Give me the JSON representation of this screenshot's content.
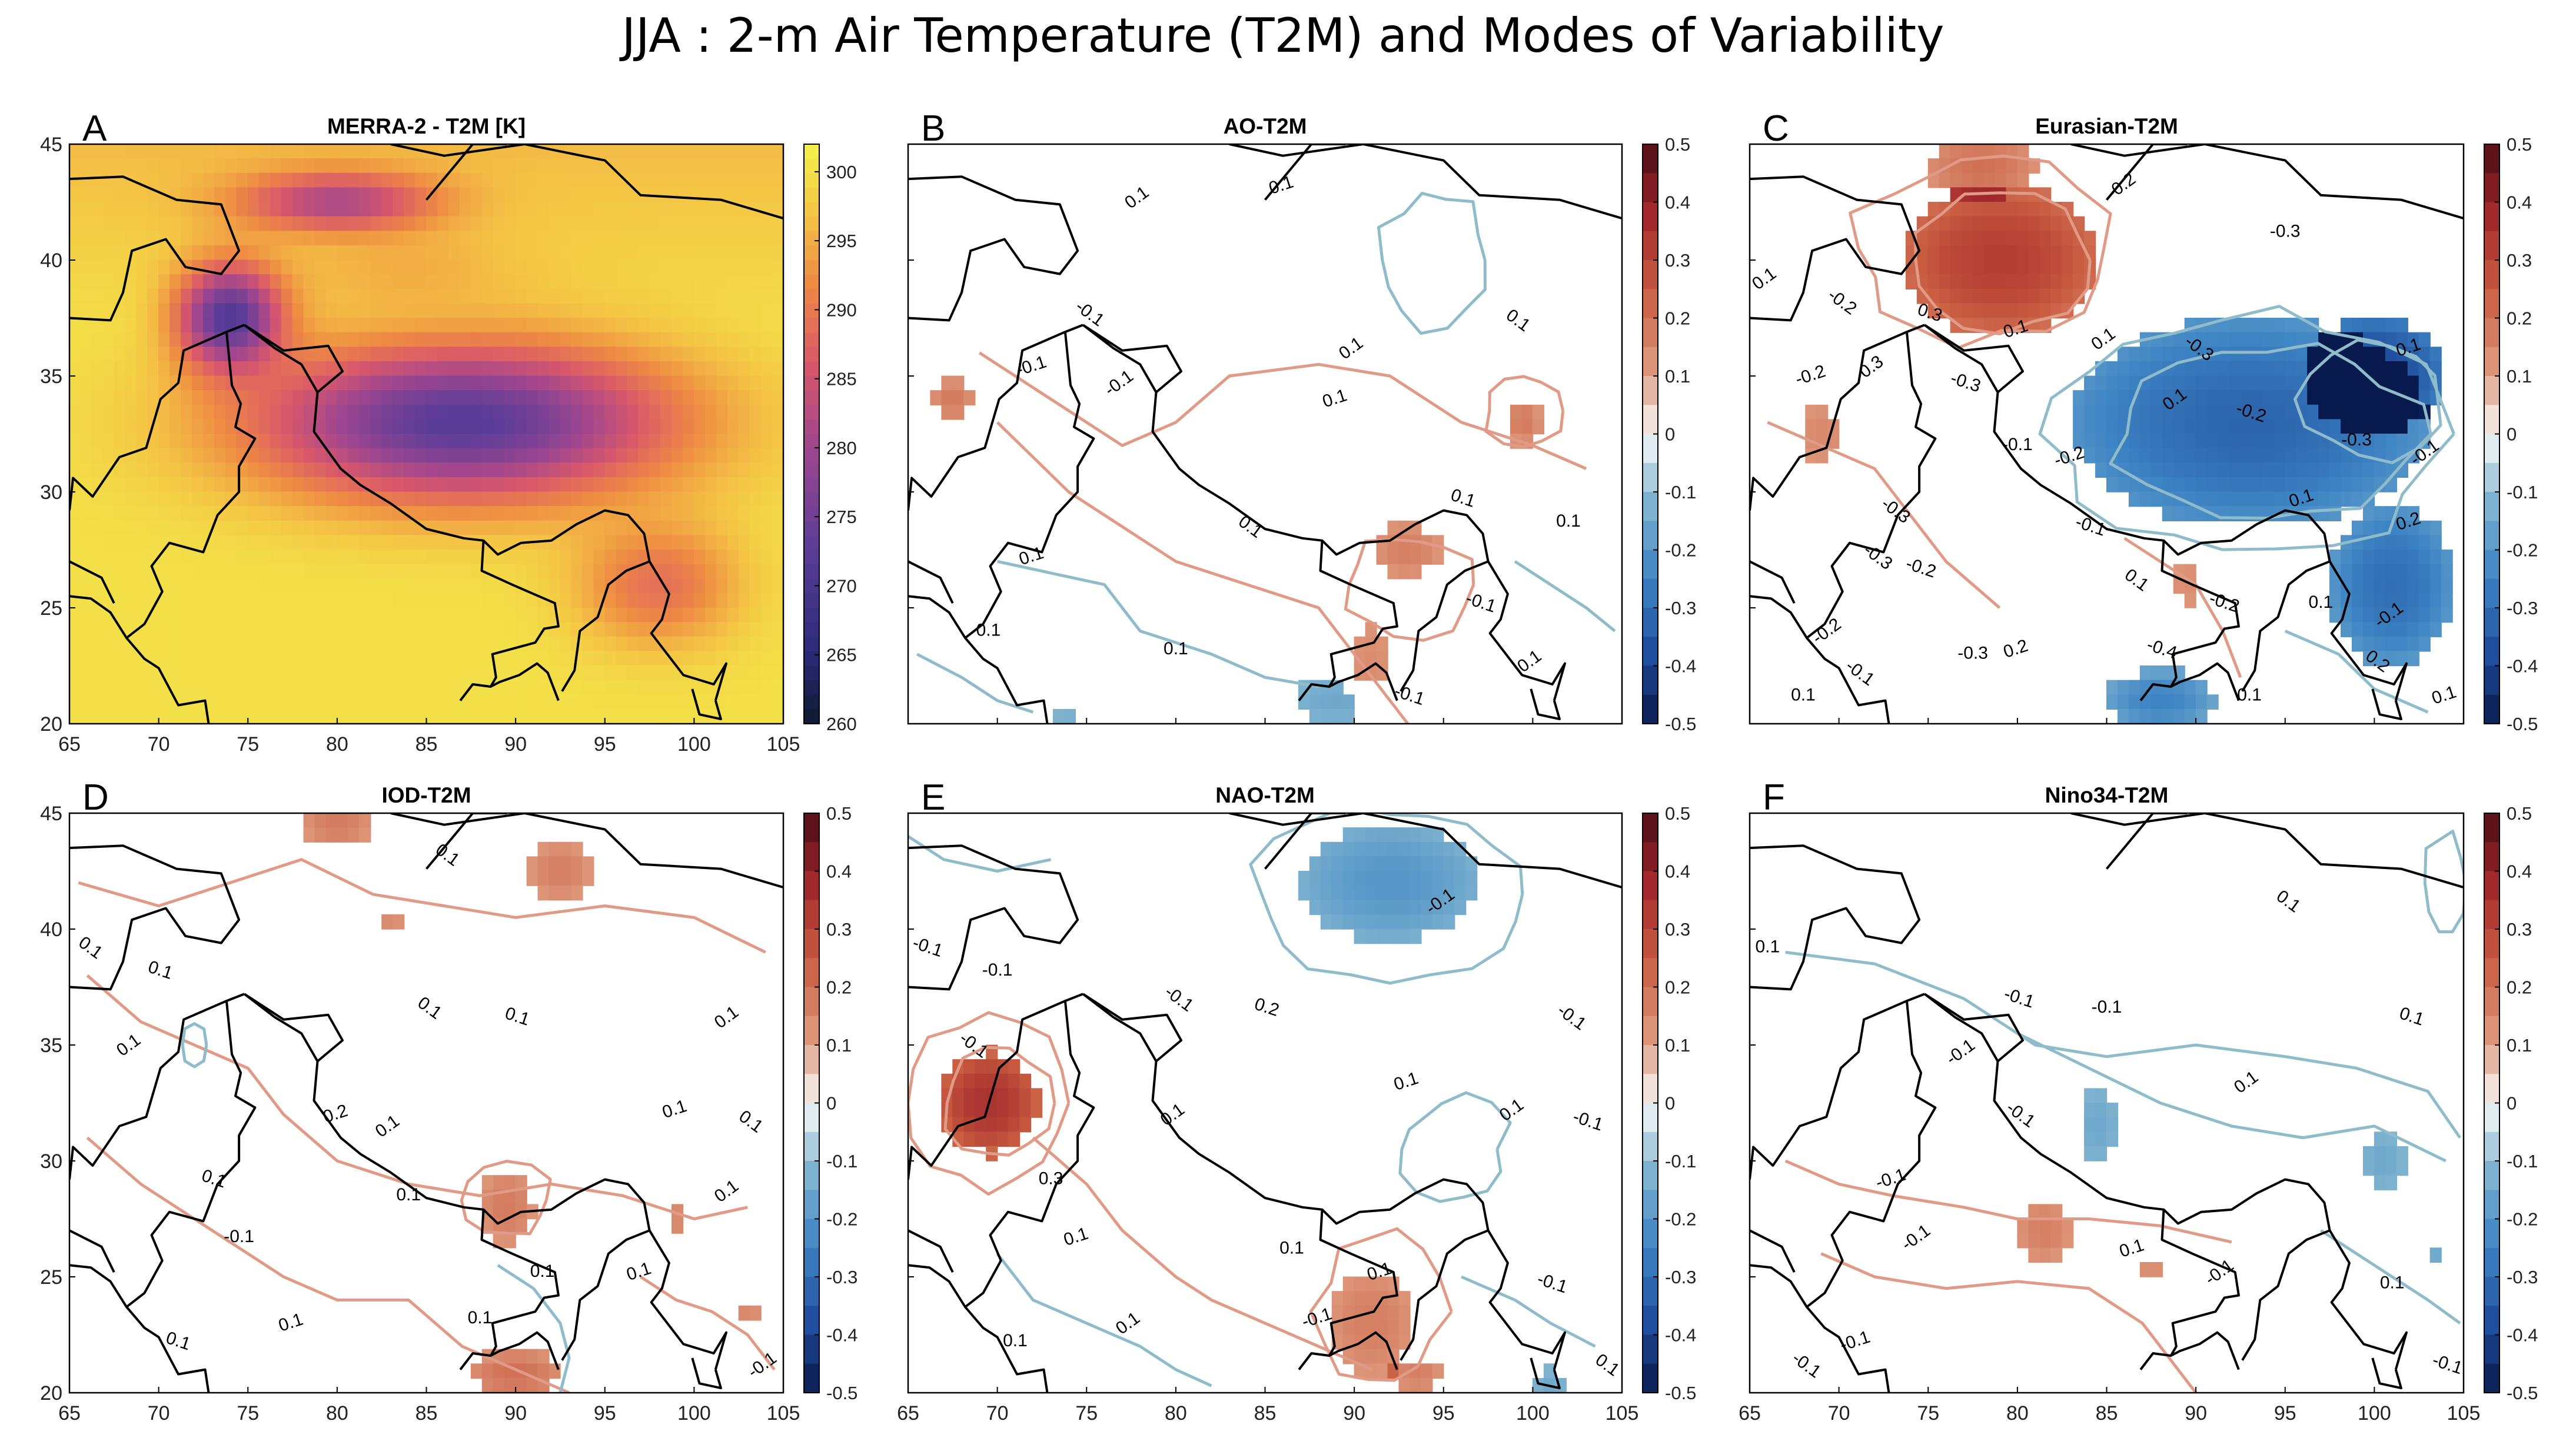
{
  "title": "JJA : 2-m Air Temperature (T2M) and Modes of Variability",
  "colors": {
    "positive_contour": "#e09a86",
    "negative_contour": "#8fbccb",
    "border": "#000000",
    "temp_cold": "#5b3d98",
    "temp_mid": "#e3743c",
    "temp_warm": "#f2ef4a"
  },
  "chart_data": [
    {
      "type": "heatmap",
      "panel": "A",
      "title": "MERRA-2 - T2M [K]",
      "xlim": [
        65,
        105
      ],
      "ylim": [
        20,
        45
      ],
      "xticks": [
        "65",
        "70",
        "75",
        "80",
        "85",
        "90",
        "95",
        "100",
        "105"
      ],
      "yticks": [
        "45",
        "40",
        "35",
        "30",
        "25",
        "20"
      ],
      "colorbar_ticks": [
        "300",
        "295",
        "290",
        "285",
        "280",
        "275",
        "270",
        "265",
        "260"
      ],
      "colorbar_range": [
        260,
        302
      ],
      "contour_labels": [],
      "features": [
        {
          "name": "plains",
          "lon": 75,
          "lat": 27,
          "rx": 12,
          "ry": 7,
          "value": 300
        },
        {
          "name": "tibetan-plateau",
          "lon": 87,
          "lat": 33,
          "rx": 13,
          "ry": 3.8,
          "value": 272
        },
        {
          "name": "tarim-basin",
          "lon": 84,
          "lat": 39.5,
          "rx": 7,
          "ry": 2.2,
          "value": 295
        },
        {
          "name": "pamir-karakoram",
          "lon": 74,
          "lat": 37.5,
          "rx": 3.2,
          "ry": 2.5,
          "value": 271
        },
        {
          "name": "tianshan",
          "lon": 80,
          "lat": 42.5,
          "rx": 6,
          "ry": 1.4,
          "value": 281
        },
        {
          "name": "southeast-hills",
          "lon": 98,
          "lat": 26,
          "rx": 5,
          "ry": 3,
          "value": 289
        }
      ]
    },
    {
      "type": "heatmap",
      "panel": "B",
      "title": "AO-T2M",
      "xlim": [
        65,
        105
      ],
      "ylim": [
        20,
        45
      ],
      "xticks": [],
      "yticks": [],
      "colorbar_ticks": [
        "0.5",
        "0.4",
        "0.3",
        "0.2",
        "0.1",
        "0",
        "-0.1",
        "-0.2",
        "-0.3",
        "-0.4",
        "-0.5"
      ],
      "colorbar_range": [
        -0.5,
        0.5
      ],
      "contour_labels": [
        "-0.1",
        "0.1",
        "0.1",
        "0.1",
        "0.1",
        "0.1",
        "0.1",
        "0.1",
        "-0.1",
        "-0.1",
        "0.1",
        "-0.1",
        "0.1",
        "-0.1",
        "0.1",
        "0.1",
        "0.1"
      ],
      "features": [
        {
          "name": "west-warm",
          "lon": 67.5,
          "lat": 34,
          "rx": 1.2,
          "ry": 0.9,
          "value": 0.18
        },
        {
          "name": "east-warm",
          "lon": 99.5,
          "lat": 33,
          "rx": 1,
          "ry": 1,
          "value": 0.18
        },
        {
          "name": "bengal-warm",
          "lon": 93,
          "lat": 27.5,
          "rx": 2,
          "ry": 1.2,
          "value": 0.17
        },
        {
          "name": "burma-warm",
          "lon": 91,
          "lat": 22.5,
          "rx": 1.5,
          "ry": 2.8,
          "value": 0.14
        },
        {
          "name": "bay-cool",
          "lon": 89,
          "lat": 21,
          "rx": 3,
          "ry": 1.3,
          "value": -0.15
        },
        {
          "name": "sw-cool",
          "lon": 74,
          "lat": 20.3,
          "rx": 1.3,
          "ry": 0.6,
          "value": -0.13
        }
      ]
    },
    {
      "type": "heatmap",
      "panel": "C",
      "title": "Eurasian-T2M",
      "xlim": [
        65,
        105
      ],
      "ylim": [
        20,
        45
      ],
      "xticks": [],
      "yticks": [],
      "colorbar_ticks": [
        "0.5",
        "0.4",
        "0.3",
        "0.2",
        "0.1",
        "0",
        "-0.1",
        "-0.2",
        "-0.3",
        "-0.4",
        "-0.5"
      ],
      "colorbar_range": [
        -0.5,
        0.5
      ],
      "contour_labels": [
        "0.1",
        "0.2",
        "0.1",
        "0.3",
        "0.2",
        "0.3",
        "0.2",
        "0.1",
        "-0.1",
        "-0.3",
        "-0.2",
        "-0.2",
        "-0.3",
        "-0.4",
        "-0.2",
        "-0.1",
        "-0.2",
        "-0.3",
        "-0.2",
        "-0.3",
        "0.1",
        "0.1",
        "-0.1",
        "-0.2",
        "-0.1",
        "0.1",
        "0.1",
        "-0.3",
        "-0.2",
        "0.1",
        "-0.1",
        "0.1",
        "0.1",
        "-0.3",
        "-0.3",
        "-0.2",
        "0.1"
      ],
      "features": [
        {
          "name": "central-asia-warm",
          "lon": 79,
          "lat": 40,
          "rx": 5.5,
          "ry": 3.2,
          "value": 0.32
        },
        {
          "name": "north-warm",
          "lon": 78,
          "lat": 44,
          "rx": 3,
          "ry": 1.4,
          "value": 0.2
        },
        {
          "name": "afghan-warm",
          "lon": 69,
          "lat": 32.5,
          "rx": 1.5,
          "ry": 1.5,
          "value": 0.15
        },
        {
          "name": "plateau-cold",
          "lon": 93,
          "lat": 33,
          "rx": 10,
          "ry": 4.5,
          "value": -0.32
        },
        {
          "name": "east-cold",
          "lon": 100,
          "lat": 35,
          "rx": 4,
          "ry": 2.5,
          "value": -0.4
        },
        {
          "name": "southeast-cold",
          "lon": 101,
          "lat": 26,
          "rx": 3.5,
          "ry": 3.5,
          "value": -0.3
        },
        {
          "name": "bay-cold",
          "lon": 88,
          "lat": 21,
          "rx": 3,
          "ry": 1.3,
          "value": -0.25
        },
        {
          "name": "bengal-warm",
          "lon": 89.5,
          "lat": 26,
          "rx": 1,
          "ry": 1.4,
          "value": 0.14
        }
      ]
    },
    {
      "type": "heatmap",
      "panel": "D",
      "title": "IOD-T2M",
      "xlim": [
        65,
        105
      ],
      "ylim": [
        20,
        45
      ],
      "xticks": [],
      "yticks": [],
      "colorbar_ticks": [
        "0.5",
        "0.4",
        "0.3",
        "0.2",
        "0.1",
        "0",
        "-0.1",
        "-0.2",
        "-0.3",
        "-0.4",
        "-0.5"
      ],
      "colorbar_range": [
        -0.5,
        0.5
      ],
      "contour_labels": [
        "0.1",
        "0.1",
        "0.1",
        "0.1",
        "0.1",
        "0.1",
        "0.1",
        "0.1",
        "0.1",
        "0.1",
        "0.1",
        "0.1",
        "0.1",
        "0.1",
        "0.1",
        "-0.1",
        "0.2",
        "-0.1",
        "0.1",
        "0.1",
        "0.1"
      ],
      "features": [
        {
          "name": "north-warm",
          "lon": 80,
          "lat": 44.5,
          "rx": 2,
          "ry": 0.8,
          "value": 0.18
        },
        {
          "name": "ne-warm",
          "lon": 92.5,
          "lat": 42.5,
          "rx": 1.8,
          "ry": 1.3,
          "value": 0.17
        },
        {
          "name": "mid-warm",
          "lon": 83,
          "lat": 40.5,
          "rx": 0.8,
          "ry": 0.6,
          "value": 0.15
        },
        {
          "name": "bengal-warm",
          "lon": 89.5,
          "lat": 28,
          "rx": 1.5,
          "ry": 1.6,
          "value": 0.18
        },
        {
          "name": "east-warm",
          "lon": 99,
          "lat": 27.5,
          "rx": 0.8,
          "ry": 1,
          "value": 0.15
        },
        {
          "name": "south-warm",
          "lon": 90,
          "lat": 20.8,
          "rx": 2.5,
          "ry": 1,
          "value": 0.2
        },
        {
          "name": "far-east-warm",
          "lon": 103,
          "lat": 23.5,
          "rx": 0.9,
          "ry": 0.6,
          "value": 0.15
        },
        {
          "name": "bay-cool",
          "lon": 92.5,
          "lat": 22,
          "rx": 0.4,
          "ry": 1.2,
          "value": -0.13
        }
      ]
    },
    {
      "type": "heatmap",
      "panel": "E",
      "title": "NAO-T2M",
      "xlim": [
        65,
        105
      ],
      "ylim": [
        20,
        45
      ],
      "xticks": [
        "65",
        "70",
        "75",
        "80",
        "85",
        "90",
        "95",
        "100",
        "105"
      ],
      "yticks": [],
      "colorbar_ticks": [
        "0.5",
        "0.4",
        "0.3",
        "0.2",
        "0.1",
        "0",
        "-0.1",
        "-0.2",
        "-0.3",
        "-0.4",
        "-0.5"
      ],
      "colorbar_range": [
        -0.5,
        0.5
      ],
      "contour_labels": [
        "0.1",
        "-0.1",
        "-0.1",
        "-0.1",
        "-0.1",
        "0.1",
        "0.1",
        "0.3",
        "0.2",
        "0.1",
        "0.1",
        "0.1",
        "0.1",
        "-0.1",
        "-0.1",
        "-0.1",
        "0.1",
        "0.1",
        "-0.1",
        "-0.1"
      ],
      "features": [
        {
          "name": "north-cool",
          "lon": 92,
          "lat": 42,
          "rx": 5,
          "ry": 2.5,
          "value": -0.2
        },
        {
          "name": "west-warm",
          "lon": 69.5,
          "lat": 32.5,
          "rx": 2.8,
          "ry": 2.2,
          "value": 0.35
        },
        {
          "name": "bengal-warm",
          "lon": 91,
          "lat": 23,
          "rx": 2.5,
          "ry": 2.4,
          "value": 0.17
        },
        {
          "name": "south-warm",
          "lon": 93.5,
          "lat": 20.8,
          "rx": 1.5,
          "ry": 0.8,
          "value": 0.17
        },
        {
          "name": "se-cool",
          "lon": 101,
          "lat": 20.5,
          "rx": 1.2,
          "ry": 0.6,
          "value": -0.15
        }
      ]
    },
    {
      "type": "heatmap",
      "panel": "F",
      "title": "Nino34-T2M",
      "xlim": [
        65,
        105
      ],
      "ylim": [
        20,
        45
      ],
      "xticks": [
        "65",
        "70",
        "75",
        "80",
        "85",
        "90",
        "95",
        "100",
        "105"
      ],
      "yticks": [],
      "colorbar_ticks": [
        "0.5",
        "0.4",
        "0.3",
        "0.2",
        "0.1",
        "0",
        "-0.1",
        "-0.2",
        "-0.3",
        "-0.4",
        "-0.5"
      ],
      "colorbar_range": [
        -0.5,
        0.5
      ],
      "contour_labels": [
        "-0.1",
        "-0.1",
        "-0.1",
        "-0.1",
        "-0.1",
        "-0.1",
        "-0.1",
        "0.1",
        "0.1",
        "0.1",
        "0.1",
        "0.1",
        "0.1",
        "-0.1",
        "-0.1",
        "-0.1"
      ],
      "features": [
        {
          "name": "central-cool",
          "lon": 84.5,
          "lat": 31.5,
          "rx": 1.4,
          "ry": 2,
          "value": -0.15
        },
        {
          "name": "east-cool",
          "lon": 100.5,
          "lat": 30,
          "rx": 1.5,
          "ry": 1.5,
          "value": -0.15
        },
        {
          "name": "west-warm",
          "lon": 81.5,
          "lat": 27,
          "rx": 1.6,
          "ry": 1.4,
          "value": 0.17
        },
        {
          "name": "bengal-warm",
          "lon": 87.5,
          "lat": 25.5,
          "rx": 0.7,
          "ry": 0.6,
          "value": 0.15
        },
        {
          "name": "se-cool",
          "lon": 103.5,
          "lat": 26,
          "rx": 0.3,
          "ry": 0.3,
          "value": -0.15
        }
      ]
    }
  ]
}
